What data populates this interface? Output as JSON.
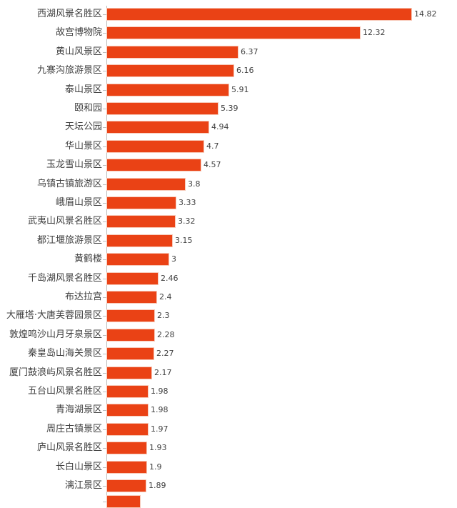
{
  "chart_data": {
    "type": "bar",
    "orientation": "horizontal",
    "title": "",
    "xlabel": "",
    "ylabel": "",
    "grid": false,
    "legend": null,
    "bar_color": "#ea4215",
    "categories": [
      "西湖风景名胜区",
      "故宫博物院",
      "黄山风景区",
      "九寨沟旅游景区",
      "泰山景区",
      "颐和园",
      "天坛公园",
      "华山景区",
      "玉龙雪山景区",
      "乌镇古镇旅游区",
      "峨眉山景区",
      "武夷山风景名胜区",
      "都江堰旅游景区",
      "黄鹤楼",
      "千岛湖风景名胜区",
      "布达拉宫",
      "大雁塔·大唐芙蓉园景区",
      "敦煌鸣沙山月牙泉景区",
      "秦皇岛山海关景区",
      "厦门鼓浪屿风景名胜区",
      "五台山风景名胜区",
      "青海湖景区",
      "周庄古镇景区",
      "庐山风景名胜区",
      "长白山景区",
      "漓江景区"
    ],
    "values": [
      14.82,
      12.32,
      6.37,
      6.16,
      5.91,
      5.39,
      4.94,
      4.7,
      4.57,
      3.8,
      3.33,
      3.32,
      3.15,
      3,
      2.46,
      2.4,
      2.3,
      2.28,
      2.27,
      2.17,
      1.98,
      1.98,
      1.97,
      1.93,
      1.9,
      1.89
    ],
    "value_labels": [
      "14.82",
      "12.32",
      "6.37",
      "6.16",
      "5.91",
      "5.39",
      "4.94",
      "4.7",
      "4.57",
      "3.8",
      "3.33",
      "3.32",
      "3.15",
      "3",
      "2.46",
      "2.4",
      "2.3",
      "2.28",
      "2.27",
      "2.17",
      "1.98",
      "1.98",
      "1.97",
      "1.93",
      "1.9",
      "1.89"
    ]
  }
}
